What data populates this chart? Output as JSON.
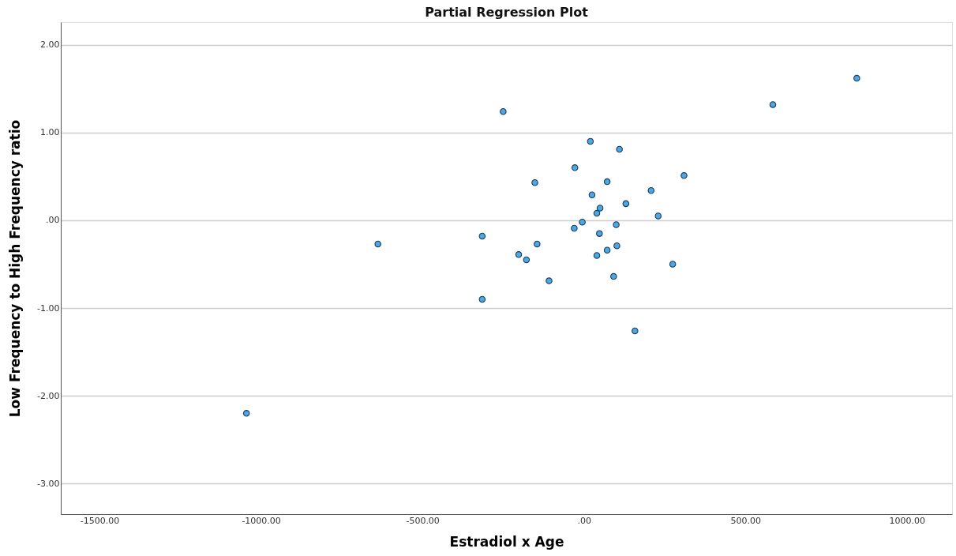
{
  "chart_data": {
    "type": "scatter",
    "title": "Partial Regression Plot",
    "xlabel": "Estradiol x Age",
    "ylabel": "Low Frequency to High Frequency ratio",
    "x": [
      -1045,
      -638,
      -315,
      -315,
      -250,
      -202,
      -178,
      -152,
      -145,
      -108,
      -30,
      -28,
      -5,
      20,
      25,
      40,
      50,
      48,
      40,
      72,
      72,
      110,
      100,
      102,
      92,
      130,
      158,
      208,
      230,
      275,
      310,
      585,
      845
    ],
    "series": [
      {
        "color": "#4aa8e8",
        "values": [
          -2.2,
          -0.27,
          -0.18,
          -0.9,
          1.24,
          -0.39,
          -0.45,
          0.43,
          -0.27,
          -0.69,
          -0.09,
          0.6,
          -0.02,
          0.9,
          0.29,
          0.08,
          0.14,
          -0.15,
          -0.4,
          0.44,
          -0.34,
          0.81,
          -0.05,
          -0.29,
          -0.64,
          0.19,
          -1.26,
          0.34,
          0.05,
          -0.5,
          0.51,
          1.32,
          1.62
        ]
      }
    ],
    "xlim": [
      -1620,
      1140
    ],
    "ylim": [
      -3.35,
      2.26
    ],
    "xticks": [
      {
        "value": -1500,
        "label": "-1500.00"
      },
      {
        "value": -1000,
        "label": "-1000.00"
      },
      {
        "value": -500,
        "label": "-500.00"
      },
      {
        "value": 0,
        "label": ".00"
      },
      {
        "value": 500,
        "label": "500.00"
      },
      {
        "value": 1000,
        "label": "1000.00"
      }
    ],
    "yticks": [
      {
        "value": -3,
        "label": "-3.00"
      },
      {
        "value": -2,
        "label": "-2.00"
      },
      {
        "value": -1,
        "label": "-1.00"
      },
      {
        "value": 0,
        "label": ".00"
      },
      {
        "value": 1,
        "label": "1.00"
      },
      {
        "value": 2,
        "label": "2.00"
      }
    ],
    "grid": "y",
    "marker": "circle"
  }
}
